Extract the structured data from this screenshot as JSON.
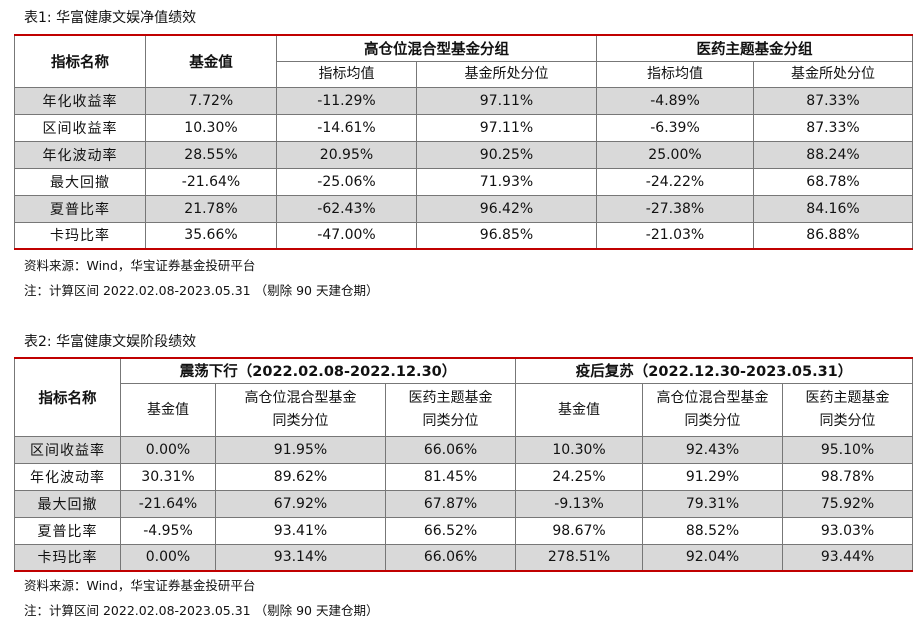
{
  "table1": {
    "caption": "表1:  华富健康文娱净值绩效",
    "headers": {
      "metric": "指标名称",
      "fund": "基金值",
      "group_a": "高仓位混合型基金分组",
      "group_b": "医药主题基金分组",
      "avg": "指标均值",
      "pct": "基金所处分位"
    },
    "rows": [
      {
        "label": "年化收益率",
        "fund": "7.72%",
        "a_avg": "-11.29%",
        "a_pct": "97.11%",
        "b_avg": "-4.89%",
        "b_pct": "87.33%"
      },
      {
        "label": "区间收益率",
        "fund": "10.30%",
        "a_avg": "-14.61%",
        "a_pct": "97.11%",
        "b_avg": "-6.39%",
        "b_pct": "87.33%"
      },
      {
        "label": "年化波动率",
        "fund": "28.55%",
        "a_avg": "20.95%",
        "a_pct": "90.25%",
        "b_avg": "25.00%",
        "b_pct": "88.24%"
      },
      {
        "label": "最大回撤",
        "fund": "-21.64%",
        "a_avg": "-25.06%",
        "a_pct": "71.93%",
        "b_avg": "-24.22%",
        "b_pct": "68.78%"
      },
      {
        "label": "夏普比率",
        "fund": "21.78%",
        "a_avg": "-62.43%",
        "a_pct": "96.42%",
        "b_avg": "-27.38%",
        "b_pct": "84.16%"
      },
      {
        "label": "卡玛比率",
        "fund": "35.66%",
        "a_avg": "-47.00%",
        "a_pct": "96.85%",
        "b_avg": "-21.03%",
        "b_pct": "86.88%"
      }
    ],
    "source": "资料来源：Wind，华宝证券基金投研平台",
    "note": "注：计算区间 2022.02.08-2023.05.31 （剔除 90 天建仓期）"
  },
  "table2": {
    "caption": "表2:  华富健康文娱阶段绩效",
    "headers": {
      "metric": "指标名称",
      "period_a": "震荡下行（2022.02.08-2022.12.30）",
      "period_b": "疫后复苏（2022.12.30-2023.05.31）",
      "fund": "基金值",
      "mix_l1": "高仓位混合型基金",
      "med_l1": "医药主题基金",
      "pct_l2": "同类分位"
    },
    "rows": [
      {
        "label": "区间收益率",
        "a_fund": "0.00%",
        "a_mix": "91.95%",
        "a_med": "66.06%",
        "b_fund": "10.30%",
        "b_mix": "92.43%",
        "b_med": "95.10%"
      },
      {
        "label": "年化波动率",
        "a_fund": "30.31%",
        "a_mix": "89.62%",
        "a_med": "81.45%",
        "b_fund": "24.25%",
        "b_mix": "91.29%",
        "b_med": "98.78%"
      },
      {
        "label": "最大回撤",
        "a_fund": "-21.64%",
        "a_mix": "67.92%",
        "a_med": "67.87%",
        "b_fund": "-9.13%",
        "b_mix": "79.31%",
        "b_med": "75.92%"
      },
      {
        "label": "夏普比率",
        "a_fund": "-4.95%",
        "a_mix": "93.41%",
        "a_med": "66.52%",
        "b_fund": "98.67%",
        "b_mix": "88.52%",
        "b_med": "93.03%"
      },
      {
        "label": "卡玛比率",
        "a_fund": "0.00%",
        "a_mix": "93.14%",
        "a_med": "66.06%",
        "b_fund": "278.51%",
        "b_mix": "92.04%",
        "b_med": "93.44%"
      }
    ],
    "source": "资料来源：Wind，华宝证券基金投研平台",
    "note": "注：计算区间 2022.02.08-2023.05.31 （剔除 90 天建仓期）"
  }
}
